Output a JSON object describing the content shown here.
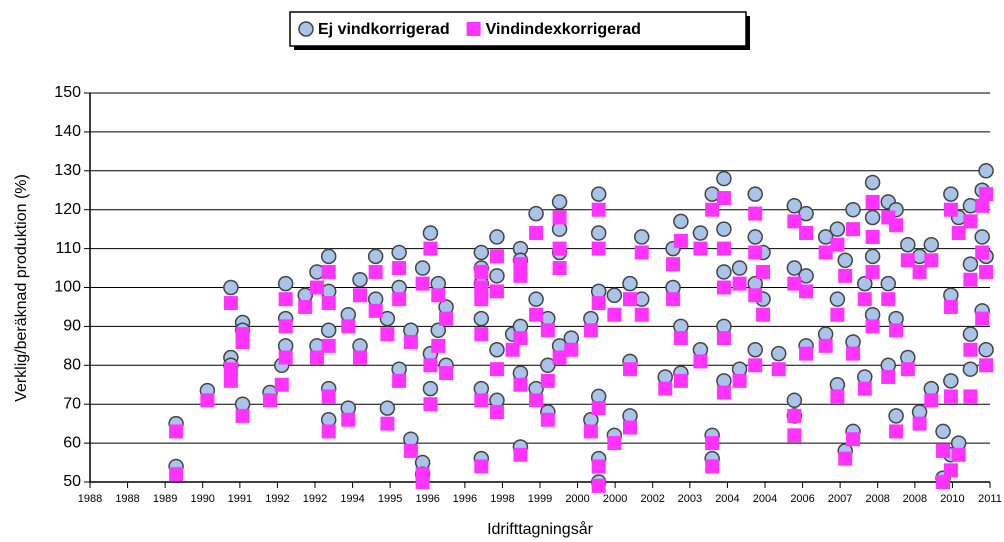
{
  "chart_data": {
    "type": "scatter",
    "xlabel": "Idrifttagningsår",
    "ylabel": "Verklig/beräknad produktion (%)",
    "xlim": [
      1988,
      2011
    ],
    "xticks": [
      {
        "value": 1988.0,
        "label": "1988"
      },
      {
        "value": 1988.96,
        "label": "1988"
      },
      {
        "value": 1989.92,
        "label": "1989"
      },
      {
        "value": 1990.88,
        "label": "1990"
      },
      {
        "value": 1991.83,
        "label": "1991"
      },
      {
        "value": 1992.79,
        "label": "1992"
      },
      {
        "value": 1993.75,
        "label": "1992"
      },
      {
        "value": 1994.71,
        "label": "1994"
      },
      {
        "value": 1995.67,
        "label": "1995"
      },
      {
        "value": 1996.63,
        "label": "1996"
      },
      {
        "value": 1997.58,
        "label": "1996"
      },
      {
        "value": 1998.54,
        "label": "1998"
      },
      {
        "value": 1999.5,
        "label": "1999"
      },
      {
        "value": 2000.46,
        "label": "2000"
      },
      {
        "value": 2001.42,
        "label": "2000"
      },
      {
        "value": 2002.38,
        "label": "2002"
      },
      {
        "value": 2003.33,
        "label": "2003"
      },
      {
        "value": 2004.29,
        "label": "2004"
      },
      {
        "value": 2005.25,
        "label": "2004"
      },
      {
        "value": 2006.21,
        "label": "2006"
      },
      {
        "value": 2007.17,
        "label": "2007"
      },
      {
        "value": 2008.13,
        "label": "2008"
      },
      {
        "value": 2009.08,
        "label": "2008"
      },
      {
        "value": 2010.04,
        "label": "2010"
      },
      {
        "value": 2011.0,
        "label": "2011"
      }
    ],
    "ylim": [
      50,
      150
    ],
    "yticks": [
      50,
      60,
      70,
      80,
      90,
      100,
      110,
      120,
      130,
      140,
      150
    ],
    "grid": true,
    "legend": "top",
    "x": [
      1990.2,
      1990.2,
      1991.0,
      1991.6,
      1991.6,
      1991.6,
      1991.9,
      1991.9,
      1991.9,
      1992.6,
      1992.9,
      1993.0,
      1993.0,
      1993.0,
      1993.5,
      1993.8,
      1993.8,
      1994.1,
      1994.1,
      1994.1,
      1994.1,
      1994.1,
      1994.6,
      1994.6,
      1994.9,
      1994.9,
      1995.3,
      1995.3,
      1995.6,
      1995.6,
      1995.9,
      1995.9,
      1995.9,
      1996.2,
      1996.2,
      1996.5,
      1996.5,
      1996.5,
      1996.7,
      1996.7,
      1996.7,
      1996.9,
      1996.9,
      1997.1,
      1997.1,
      1998.0,
      1998.0,
      1998.0,
      1998.0,
      1998.0,
      1998.0,
      1998.4,
      1998.4,
      1998.4,
      1998.4,
      1998.8,
      1999.0,
      1999.0,
      1999.0,
      1999.0,
      1999.0,
      1999.4,
      1999.4,
      1999.4,
      1999.7,
      1999.7,
      1999.7,
      2000.0,
      2000.0,
      2000.0,
      2000.0,
      2000.3,
      2000.8,
      2000.8,
      2001.0,
      2001.0,
      2001.0,
      2001.0,
      2001.0,
      2001.0,
      2001.4,
      2001.4,
      2001.8,
      2001.8,
      2001.8,
      2002.1,
      2002.1,
      2002.7,
      2002.9,
      2002.9,
      2003.1,
      2003.1,
      2003.1,
      2003.6,
      2003.6,
      2003.9,
      2003.9,
      2003.9,
      2004.2,
      2004.2,
      2004.2,
      2004.2,
      2004.2,
      2004.6,
      2004.6,
      2005.0,
      2005.0,
      2005.0,
      2005.0,
      2005.2,
      2005.2,
      2005.6,
      2006.0,
      2006.0,
      2006.0,
      2006.0,
      2006.3,
      2006.3,
      2006.3,
      2006.8,
      2006.8,
      2007.1,
      2007.1,
      2007.1,
      2007.3,
      2007.3,
      2007.5,
      2007.5,
      2007.5,
      2007.8,
      2007.8,
      2008.0,
      2008.0,
      2008.0,
      2008.0,
      2008.4,
      2008.4,
      2008.4,
      2008.6,
      2008.6,
      2008.6,
      2008.9,
      2008.9,
      2009.2,
      2009.2,
      2009.5,
      2009.5,
      2009.8,
      2009.8,
      2010.0,
      2010.0,
      2010.0,
      2010.0,
      2010.2,
      2010.2,
      2010.5,
      2010.5,
      2010.5,
      2010.5,
      2010.8,
      2010.8,
      2010.8,
      2010.9,
      2010.9,
      2010.9
    ],
    "series": [
      {
        "name": "Ej vindkorrigerad",
        "color": "#a9c4e8",
        "marker": "circle",
        "values": [
          65,
          54,
          73.5,
          82,
          100,
          80,
          91,
          70,
          89,
          73,
          80,
          101,
          92,
          85,
          98,
          104,
          85,
          108,
          99,
          89,
          74,
          66,
          93,
          69,
          102,
          85,
          108,
          97,
          92,
          69,
          109,
          100,
          79,
          61,
          89,
          55,
          105,
          52,
          114,
          83,
          74,
          101,
          89,
          95,
          80,
          109,
          105,
          92,
          74,
          56,
          101,
          113,
          103,
          84,
          71,
          88,
          110,
          78,
          59,
          107,
          90,
          119,
          97,
          74,
          92,
          80,
          68,
          122,
          115,
          109,
          85,
          87,
          92,
          66,
          124,
          114,
          99,
          72,
          56,
          50,
          98,
          62,
          101,
          81,
          67,
          113,
          97,
          77,
          110,
          100,
          117,
          90,
          78,
          114,
          84,
          124,
          62,
          56,
          128,
          115,
          104,
          90,
          76,
          105,
          79,
          124,
          113,
          101,
          84,
          109,
          97,
          83,
          121,
          105,
          67,
          71,
          119,
          103,
          85,
          113,
          88,
          115,
          97,
          75,
          107,
          58,
          120,
          86,
          63,
          101,
          77,
          127,
          118,
          108,
          93,
          122,
          101,
          80,
          120,
          92,
          67,
          111,
          82,
          68,
          108,
          111,
          74,
          51,
          63,
          124,
          76,
          57,
          98,
          118,
          60,
          121,
          106,
          88,
          79,
          125,
          113,
          94,
          130,
          84,
          108
        ]
      },
      {
        "name": "Vindindexkorrigerad",
        "color": "#ff33ff",
        "marker": "square",
        "values": [
          63,
          52,
          71,
          76,
          96,
          79,
          88,
          67,
          86,
          71,
          75,
          97,
          90,
          82,
          95,
          100,
          82,
          104,
          96,
          85,
          72,
          63,
          90,
          66,
          98,
          82,
          104,
          94,
          88,
          65,
          105,
          97,
          76,
          58,
          86,
          52,
          101,
          50,
          110,
          80,
          70,
          98,
          85,
          92,
          78,
          104,
          100,
          88,
          71,
          54,
          97,
          108,
          99,
          79,
          68,
          84,
          106,
          75,
          57,
          103,
          87,
          114,
          93,
          71,
          89,
          76,
          66,
          118,
          110,
          105,
          82,
          84,
          89,
          63,
          120,
          110,
          96,
          69,
          54,
          49,
          93,
          60,
          97,
          79,
          64,
          109,
          93,
          74,
          106,
          97,
          112,
          87,
          76,
          110,
          81,
          120,
          60,
          54,
          123,
          110,
          100,
          87,
          73,
          101,
          76,
          119,
          109,
          98,
          80,
          104,
          93,
          79,
          117,
          101,
          62,
          67,
          114,
          99,
          83,
          109,
          85,
          111,
          93,
          72,
          103,
          56,
          115,
          83,
          61,
          97,
          74,
          122,
          113,
          104,
          90,
          118,
          97,
          77,
          116,
          89,
          63,
          107,
          79,
          65,
          104,
          107,
          71,
          50,
          58,
          120,
          72,
          53,
          95,
          114,
          57,
          117,
          102,
          84,
          72,
          121,
          109,
          92,
          124,
          80,
          104
        ]
      }
    ]
  }
}
